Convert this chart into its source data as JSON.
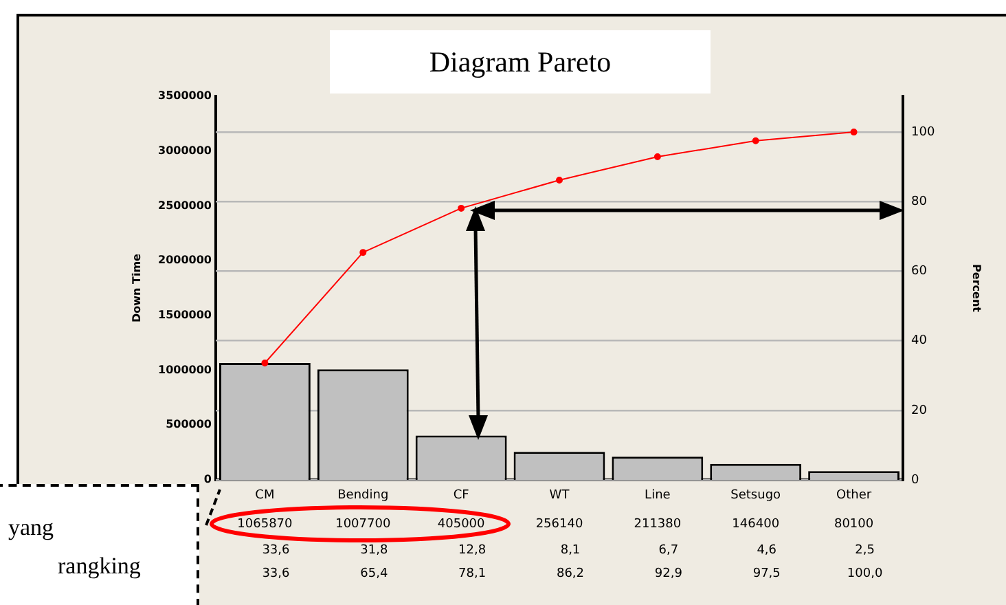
{
  "chart_data": {
    "type": "bar",
    "title": "Diagram Pareto",
    "ylabel": "Down Time",
    "y2label": "Percent",
    "categories": [
      "CM",
      "Bending",
      "CF",
      "WT",
      "Line",
      "Setsugo",
      "Other"
    ],
    "series": [
      {
        "color": "#c0c0c0",
        "values": [
          1065870,
          1007700,
          405000,
          256140,
          211380,
          146400,
          80100
        ],
        "value_labels": [
          "1065870",
          "1007700",
          "405000",
          "256140",
          "211380",
          "146400",
          "80100"
        ]
      },
      {
        "type": "line",
        "axis": "y2",
        "color": "#ff0000",
        "values": [
          33.6,
          65.4,
          78.1,
          86.2,
          92.9,
          97.5,
          100.0
        ],
        "value_labels": [
          "33,6",
          "65,4",
          "78,1",
          "86,2",
          "92,9",
          "97,5",
          "100,0"
        ]
      }
    ],
    "ylim": [
      0,
      3500000
    ],
    "yticks": [
      0,
      500000,
      1000000,
      1500000,
      2000000,
      2500000,
      3000000,
      3500000
    ],
    "y2lim": [
      0,
      110.3
    ],
    "y2ticks": [
      0,
      20,
      40,
      60,
      80,
      100
    ],
    "grid": "y2",
    "marker": "circle",
    "annotations": [
      "33,6",
      "31,8",
      "12,8",
      "8,1",
      "6,7",
      "4,6",
      "2,5",
      "yang",
      "rangking"
    ]
  }
}
